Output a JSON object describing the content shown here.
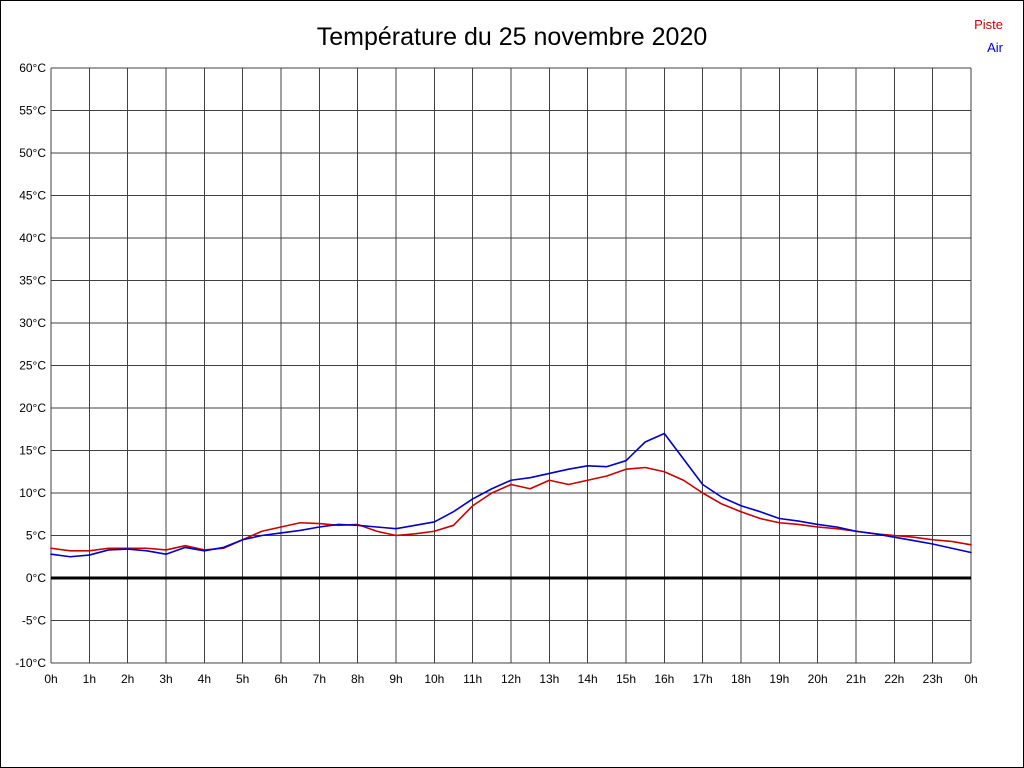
{
  "title": "Température du 25 novembre 2020",
  "legend": {
    "piste_label": "Piste",
    "air_label": "Air"
  },
  "colors": {
    "piste": "#cc0000",
    "air": "#0000cc",
    "grid": "#404040",
    "zero_line": "#000000",
    "background": "#ffffff"
  },
  "chart_data": {
    "type": "line",
    "title": "Température du 25 novembre 2020",
    "xlabel": "",
    "ylabel": "",
    "ylim": [
      -10,
      60
    ],
    "y_tick_step": 5,
    "y_unit": "°C",
    "xlim": [
      0,
      24
    ],
    "x_tick_step": 1,
    "x_tick_labels": [
      "0h",
      "1h",
      "2h",
      "3h",
      "4h",
      "5h",
      "6h",
      "7h",
      "8h",
      "9h",
      "10h",
      "11h",
      "12h",
      "13h",
      "14h",
      "15h",
      "16h",
      "17h",
      "18h",
      "19h",
      "20h",
      "21h",
      "22h",
      "23h",
      "0h"
    ],
    "grid": true,
    "zero_line": true,
    "legend_position": "top-right",
    "x": [
      0,
      0.5,
      1,
      1.5,
      2,
      2.5,
      3,
      3.5,
      4,
      4.5,
      5,
      5.5,
      6,
      6.5,
      7,
      7.5,
      8,
      8.5,
      9,
      9.5,
      10,
      10.5,
      11,
      11.5,
      12,
      12.5,
      13,
      13.5,
      14,
      14.5,
      15,
      15.5,
      16,
      16.5,
      17,
      17.5,
      18,
      18.5,
      19,
      19.5,
      20,
      20.5,
      21,
      21.5,
      22,
      22.5,
      23,
      23.5,
      24
    ],
    "series": [
      {
        "name": "Piste",
        "color": "#cc0000",
        "values": [
          3.5,
          3.2,
          3.2,
          3.5,
          3.5,
          3.5,
          3.3,
          3.8,
          3.3,
          3.5,
          4.5,
          5.5,
          6.0,
          6.5,
          6.4,
          6.2,
          6.3,
          5.5,
          5.0,
          5.2,
          5.5,
          6.2,
          8.5,
          10.0,
          11.0,
          10.5,
          11.5,
          11.0,
          11.5,
          12.0,
          12.8,
          13.0,
          12.5,
          11.5,
          10.0,
          8.7,
          7.8,
          7.0,
          6.5,
          6.3,
          6.0,
          5.8,
          5.5,
          5.2,
          5.0,
          4.8,
          4.5,
          4.3,
          3.9
        ]
      },
      {
        "name": "Air",
        "color": "#0000cc",
        "values": [
          2.8,
          2.5,
          2.7,
          3.3,
          3.4,
          3.2,
          2.8,
          3.6,
          3.2,
          3.6,
          4.5,
          5.0,
          5.3,
          5.6,
          6.0,
          6.3,
          6.2,
          6.0,
          5.8,
          6.2,
          6.6,
          7.8,
          9.3,
          10.5,
          11.5,
          11.8,
          12.3,
          12.8,
          13.2,
          13.1,
          13.8,
          16.0,
          17.0,
          14.0,
          11.0,
          9.5,
          8.5,
          7.8,
          7.0,
          6.7,
          6.3,
          6.0,
          5.5,
          5.2,
          4.8,
          4.4,
          4.0,
          3.5,
          3.0
        ]
      }
    ]
  }
}
